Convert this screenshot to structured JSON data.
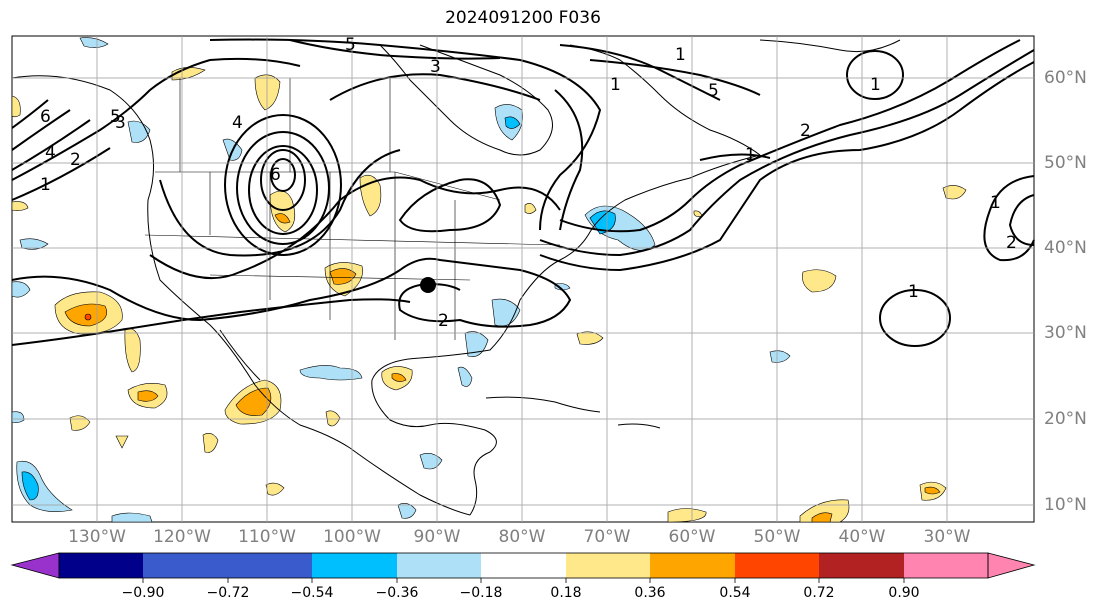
{
  "title": "2024091200 F036",
  "longitude_labels": [
    "130°W",
    "120°W",
    "110°W",
    "100°W",
    "90°W",
    "80°W",
    "70°W",
    "60°W",
    "50°W",
    "40°W",
    "30°W"
  ],
  "latitude_labels": [
    "60°N",
    "50°N",
    "40°N",
    "30°N",
    "20°N",
    "10°N"
  ],
  "contour_labels": [
    "6",
    "5",
    "4",
    "2",
    "1",
    "3",
    "6",
    "5",
    "4",
    "3",
    "2",
    "1",
    "5",
    "1",
    "2",
    "1",
    "2",
    "1",
    "1",
    "1"
  ],
  "colorbar": {
    "ticks": [
      "−0.90",
      "−0.72",
      "−0.54",
      "−0.36",
      "−0.18",
      "0.18",
      "0.36",
      "0.54",
      "0.72",
      "0.90"
    ],
    "colors": [
      "#9932cc",
      "#00008b",
      "#3a5bcc",
      "#00bfff",
      "#aee0f7",
      "#ffffff",
      "#ffe88a",
      "#ffa500",
      "#ff4500",
      "#b22222",
      "#ff85b0"
    ]
  },
  "marker": {
    "type": "black-dot"
  }
}
